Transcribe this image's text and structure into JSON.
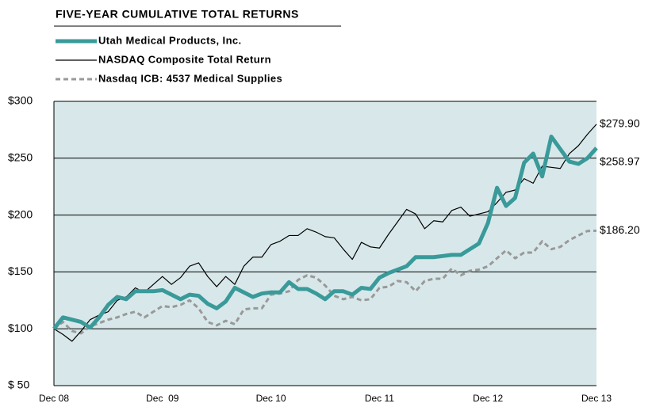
{
  "chart_data": {
    "type": "line",
    "title": "FIVE-YEAR CUMULATIVE TOTAL RETURNS",
    "categories": [
      "Dec 08",
      null,
      null,
      null,
      null,
      null,
      null,
      null,
      null,
      null,
      null,
      null,
      "Dec  09",
      null,
      null,
      null,
      null,
      null,
      null,
      null,
      null,
      null,
      null,
      null,
      "Dec 10",
      null,
      null,
      null,
      null,
      null,
      null,
      null,
      null,
      null,
      null,
      null,
      "Dec 11",
      null,
      null,
      null,
      null,
      null,
      null,
      null,
      null,
      null,
      null,
      null,
      "Dec 12",
      null,
      null,
      null,
      null,
      null,
      null,
      null,
      null,
      null,
      null,
      null,
      "Dec 13"
    ],
    "series": [
      {
        "name": "Utah Medical Products, Inc.",
        "color": "#3a9a9a",
        "width": 5,
        "dash": false,
        "end_label": "$258.97",
        "values": [
          100,
          110,
          108,
          106,
          101,
          110,
          121,
          128,
          126,
          133,
          133,
          133,
          134,
          130,
          126,
          130,
          129,
          122,
          118,
          124,
          136,
          132,
          128,
          131,
          132,
          132,
          141,
          135,
          135,
          131,
          126,
          133,
          133,
          130,
          136,
          135,
          145,
          149,
          152,
          155,
          163,
          163,
          163,
          164,
          165,
          165,
          170,
          175,
          193,
          224,
          208,
          215,
          246,
          254,
          234,
          269,
          258,
          247,
          245,
          250,
          258.97
        ]
      },
      {
        "name": "NASDAQ Composite Total Return",
        "color": "#000000",
        "width": 1.2,
        "dash": false,
        "end_label": "$279.90",
        "values": [
          100,
          95,
          89,
          98,
          108,
          112,
          115,
          125,
          128,
          136,
          132,
          139,
          146,
          139,
          145,
          155,
          158,
          146,
          137,
          146,
          139,
          155,
          163,
          163,
          174,
          177,
          182,
          182,
          188,
          185,
          181,
          180,
          170,
          161,
          176,
          172,
          171,
          183,
          194,
          205,
          201,
          188,
          195,
          194,
          204,
          207,
          199,
          201,
          203,
          211,
          220,
          222,
          232,
          228,
          243,
          242,
          241,
          254,
          261,
          271,
          279.9
        ]
      },
      {
        "name": "Nasdaq ICB: 4537 Medical Supplies",
        "color": "#999999",
        "width": 3,
        "dash": true,
        "end_label": "$186.20",
        "values": [
          100,
          106,
          98,
          96,
          102,
          105,
          108,
          110,
          113,
          115,
          110,
          115,
          120,
          119,
          121,
          125,
          118,
          106,
          103,
          107,
          104,
          117,
          118,
          118,
          130,
          131,
          133,
          143,
          147,
          145,
          138,
          129,
          126,
          128,
          125,
          126,
          136,
          137,
          142,
          141,
          133,
          142,
          144,
          144,
          153,
          147,
          151,
          152,
          155,
          162,
          169,
          162,
          167,
          167,
          177,
          170,
          172,
          178,
          182,
          186,
          186.2
        ]
      }
    ],
    "ylim": [
      50,
      300
    ],
    "yticks": [
      {
        "value": 50,
        "label": "$ 50"
      },
      {
        "value": 100,
        "label": "$100"
      },
      {
        "value": 150,
        "label": "$150"
      },
      {
        "value": 200,
        "label": "$200"
      },
      {
        "value": 250,
        "label": "$250"
      },
      {
        "value": 300,
        "label": "$300"
      }
    ],
    "grid": true,
    "plot_background": "#d8e8ea"
  }
}
